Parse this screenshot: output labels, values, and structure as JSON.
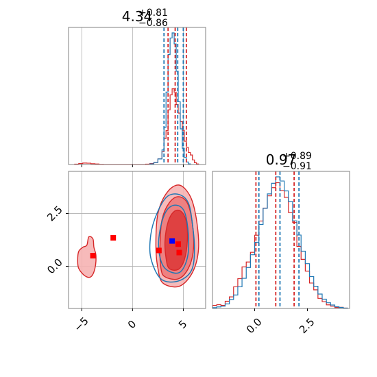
{
  "chart_data": {
    "type": "corner",
    "colors": {
      "red": "#d62728",
      "blue": "#1f77b4",
      "light_red": "#f4a6a6",
      "grid": "#b0b0b0",
      "frame": "#808080"
    },
    "parameters": [
      {
        "title_value": "4.34",
        "title_upper": "+0.81",
        "title_lower": "−0.86"
      },
      {
        "title_value": "0.97",
        "title_upper": "+0.89",
        "title_lower": "−0.91"
      }
    ],
    "x_ticks_p0": [
      {
        "value": -5,
        "label": "−5"
      },
      {
        "value": 0,
        "label": "0"
      },
      {
        "value": 5,
        "label": "5"
      }
    ],
    "x_ticks_p1": [
      {
        "value": 0.0,
        "label": "0.0"
      },
      {
        "value": 2.5,
        "label": "2.5"
      }
    ],
    "y_ticks_p1": [
      {
        "value": 0.0,
        "label": "0.0"
      },
      {
        "value": 2.5,
        "label": "2.5"
      }
    ],
    "ranges": {
      "p0": [
        -6.3,
        7.2
      ],
      "p1": [
        -2.0,
        4.5
      ]
    },
    "quantile_lines": {
      "p0_blue": [
        3.1,
        4.45,
        5.0
      ],
      "p0_red": [
        3.5,
        4.2,
        5.3
      ],
      "p1_blue": [
        0.2,
        1.2,
        2.1
      ],
      "p1_red": [
        0.06,
        1.0,
        1.87
      ]
    },
    "hist_p0_red": {
      "bins": [
        -5.7,
        -5.3,
        -4.9,
        -4.5,
        -4.1,
        -3.7,
        -3.3,
        -2.9,
        1.3,
        1.7,
        2.1,
        2.5,
        2.9,
        3.1,
        3.3,
        3.5,
        3.7,
        3.9,
        4.1,
        4.3,
        4.5,
        4.7,
        4.9,
        5.1,
        5.3,
        5.5,
        5.7,
        5.9,
        6.1,
        6.3,
        6.5
      ],
      "counts": [
        0.2,
        0.6,
        0.9,
        0.8,
        0.5,
        0.3,
        0.1,
        0,
        0.2,
        0.6,
        1.3,
        3.4,
        7.8,
        15.8,
        20.6,
        33.3,
        42.4,
        46.1,
        44.0,
        36.5,
        31.3,
        26.1,
        20.8,
        14.2,
        10.4,
        7.3,
        5.8,
        2.8,
        1.1,
        0.3
      ]
    },
    "hist_p0_blue": {
      "bins": [
        1.7,
        2.1,
        2.5,
        2.9,
        3.1,
        3.3,
        3.5,
        3.7,
        3.9,
        4.1,
        4.3,
        4.5,
        4.7,
        4.9,
        5.1,
        5.3,
        5.5,
        5.7
      ],
      "counts": [
        0.4,
        1.2,
        3.4,
        8.9,
        22.7,
        44.1,
        66.9,
        77.0,
        80.1,
        73.4,
        56.8,
        38.2,
        21.7,
        9.9,
        4.3,
        1.5,
        0.4
      ]
    },
    "hist_p1_red": {
      "bins": [
        -2.0,
        -1.8,
        -1.6,
        -1.4,
        -1.2,
        -1.0,
        -0.8,
        -0.6,
        -0.4,
        -0.2,
        0.0,
        0.2,
        0.4,
        0.6,
        0.8,
        1.0,
        1.2,
        1.4,
        1.6,
        1.8,
        2.0,
        2.2,
        2.4,
        2.6,
        2.8,
        3.0,
        3.2,
        3.4,
        3.6,
        3.8,
        4.0,
        4.2,
        4.4
      ],
      "counts": [
        1.6,
        2.0,
        1.6,
        3.8,
        6.1,
        11.4,
        15.7,
        21.9,
        24.5,
        29.6,
        38.6,
        46.1,
        52.9,
        59.4,
        63.7,
        66.3,
        62.2,
        58.6,
        50.6,
        45.3,
        32.7,
        25.9,
        19.7,
        13.4,
        9.8,
        5.3,
        3.6,
        1.9,
        1.2,
        0.5,
        0.6,
        0.2
      ]
    },
    "hist_p1_blue": {
      "bins": [
        -2.0,
        -1.8,
        -1.6,
        -1.4,
        -1.2,
        -1.0,
        -0.8,
        -0.6,
        -0.4,
        -0.2,
        0.0,
        0.2,
        0.4,
        0.6,
        0.8,
        1.0,
        1.2,
        1.4,
        1.6,
        1.8,
        2.0,
        2.2,
        2.4,
        2.6,
        2.8,
        3.0,
        3.2,
        3.4,
        3.6,
        3.8,
        4.0,
        4.2,
        4.4
      ],
      "counts": [
        0.4,
        0.8,
        1.2,
        2.4,
        4.7,
        7.1,
        11.4,
        15.9,
        21.6,
        28.3,
        34.9,
        44.3,
        52.8,
        60.4,
        66.0,
        69.4,
        67.2,
        62.0,
        56.4,
        46.2,
        38.7,
        30.2,
        23.6,
        16.8,
        11.7,
        7.6,
        4.9,
        3.0,
        1.8,
        0.9,
        0.5,
        0.2
      ]
    },
    "contours_red": [
      [
        [
          3.0,
          -0.8
        ],
        [
          4.6,
          -0.95
        ],
        [
          5.9,
          -0.3
        ],
        [
          6.5,
          0.8
        ],
        [
          6.3,
          2.2
        ],
        [
          5.7,
          3.3
        ],
        [
          4.6,
          3.85
        ],
        [
          3.4,
          3.5
        ],
        [
          2.5,
          2.5
        ],
        [
          2.3,
          1.0
        ],
        [
          2.5,
          -0.1
        ]
      ],
      [
        [
          3.2,
          -0.5
        ],
        [
          4.5,
          -0.6
        ],
        [
          5.5,
          -0.1
        ],
        [
          6.0,
          0.8
        ],
        [
          5.9,
          2.0
        ],
        [
          5.4,
          3.0
        ],
        [
          4.5,
          3.3
        ],
        [
          3.6,
          3.0
        ],
        [
          2.9,
          2.2
        ],
        [
          2.7,
          0.9
        ],
        [
          2.8,
          -0.1
        ]
      ],
      [
        [
          3.6,
          -0.1
        ],
        [
          4.5,
          -0.15
        ],
        [
          5.1,
          0.3
        ],
        [
          5.4,
          1.2
        ],
        [
          5.3,
          2.1
        ],
        [
          4.8,
          2.6
        ],
        [
          4.1,
          2.6
        ],
        [
          3.5,
          2.1
        ],
        [
          3.2,
          1.2
        ],
        [
          3.3,
          0.4
        ]
      ],
      [
        [
          -5.3,
          -0.1
        ],
        [
          -4.7,
          -0.45
        ],
        [
          -4.1,
          -0.5
        ],
        [
          -3.7,
          -0.1
        ],
        [
          -3.6,
          0.5
        ],
        [
          -3.8,
          0.9
        ],
        [
          -3.9,
          1.3
        ],
        [
          -4.3,
          1.4
        ],
        [
          -4.5,
          1.0
        ],
        [
          -4.9,
          0.9
        ],
        [
          -5.3,
          0.7
        ],
        [
          -5.4,
          0.3
        ]
      ]
    ],
    "contours_blue": [
      [
        [
          2.8,
          -0.6
        ],
        [
          4.5,
          -0.7
        ],
        [
          5.8,
          -0.2
        ],
        [
          6.1,
          0.8
        ],
        [
          5.9,
          2.0
        ],
        [
          5.5,
          3.0
        ],
        [
          4.6,
          3.4
        ],
        [
          3.4,
          3.3
        ],
        [
          2.4,
          2.5
        ],
        [
          1.8,
          1.5
        ],
        [
          1.8,
          0.4
        ]
      ],
      [
        [
          3.2,
          -0.1
        ],
        [
          4.6,
          -0.3
        ],
        [
          5.4,
          0.4
        ],
        [
          5.5,
          1.5
        ],
        [
          5.1,
          2.6
        ],
        [
          4.2,
          2.9
        ],
        [
          3.3,
          2.6
        ],
        [
          2.7,
          1.7
        ],
        [
          2.6,
          0.7
        ]
      ]
    ],
    "markers_red": [
      {
        "x": -3.9,
        "y": 0.5
      },
      {
        "x": -1.9,
        "y": 1.35
      },
      {
        "x": 2.6,
        "y": 0.75
      },
      {
        "x": 4.5,
        "y": 1.05
      },
      {
        "x": 4.6,
        "y": 0.65
      }
    ],
    "markers_blue": [
      {
        "x": 3.9,
        "y": 1.2
      }
    ]
  }
}
